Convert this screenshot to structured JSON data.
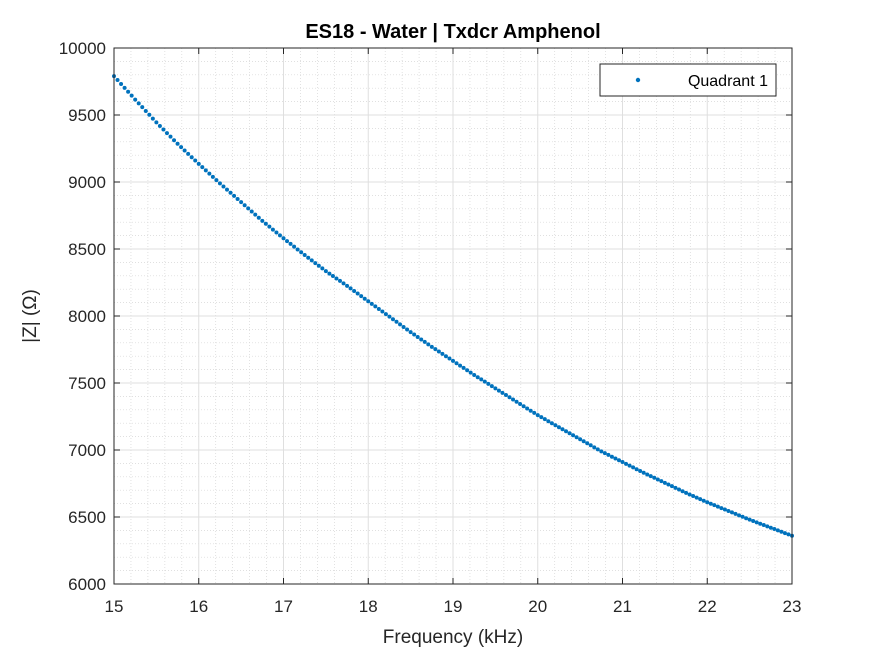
{
  "chart_data": {
    "type": "scatter",
    "title": "ES18 - Water | Txdcr Amphenol",
    "xlabel": "Frequency (kHz)",
    "ylabel": "|Z| (Ω)",
    "xlim": [
      15,
      23
    ],
    "ylim": [
      6000,
      10000
    ],
    "xticks": [
      15,
      16,
      17,
      18,
      19,
      20,
      21,
      22,
      23
    ],
    "yticks": [
      6000,
      6500,
      7000,
      7500,
      8000,
      8500,
      9000,
      9500,
      10000
    ],
    "grid": true,
    "minor_grid": true,
    "legend_position": "top-right",
    "series": [
      {
        "name": "Quadrant 1",
        "color": "#0072BD",
        "marker": "dot",
        "x": [
          15.0,
          15.25,
          15.5,
          15.75,
          16.0,
          16.25,
          16.5,
          16.75,
          17.0,
          17.25,
          17.5,
          17.75,
          18.0,
          18.25,
          18.5,
          18.75,
          19.0,
          19.25,
          19.5,
          19.75,
          20.0,
          20.25,
          20.5,
          20.75,
          21.0,
          21.25,
          21.5,
          21.75,
          22.0,
          22.25,
          22.5,
          22.75,
          23.0
        ],
        "y": [
          9790,
          9615,
          9445,
          9285,
          9135,
          8990,
          8850,
          8710,
          8580,
          8455,
          8335,
          8225,
          8110,
          7995,
          7880,
          7770,
          7665,
          7560,
          7460,
          7360,
          7260,
          7170,
          7080,
          6990,
          6910,
          6830,
          6755,
          6680,
          6610,
          6545,
          6480,
          6420,
          6360
        ]
      }
    ]
  }
}
